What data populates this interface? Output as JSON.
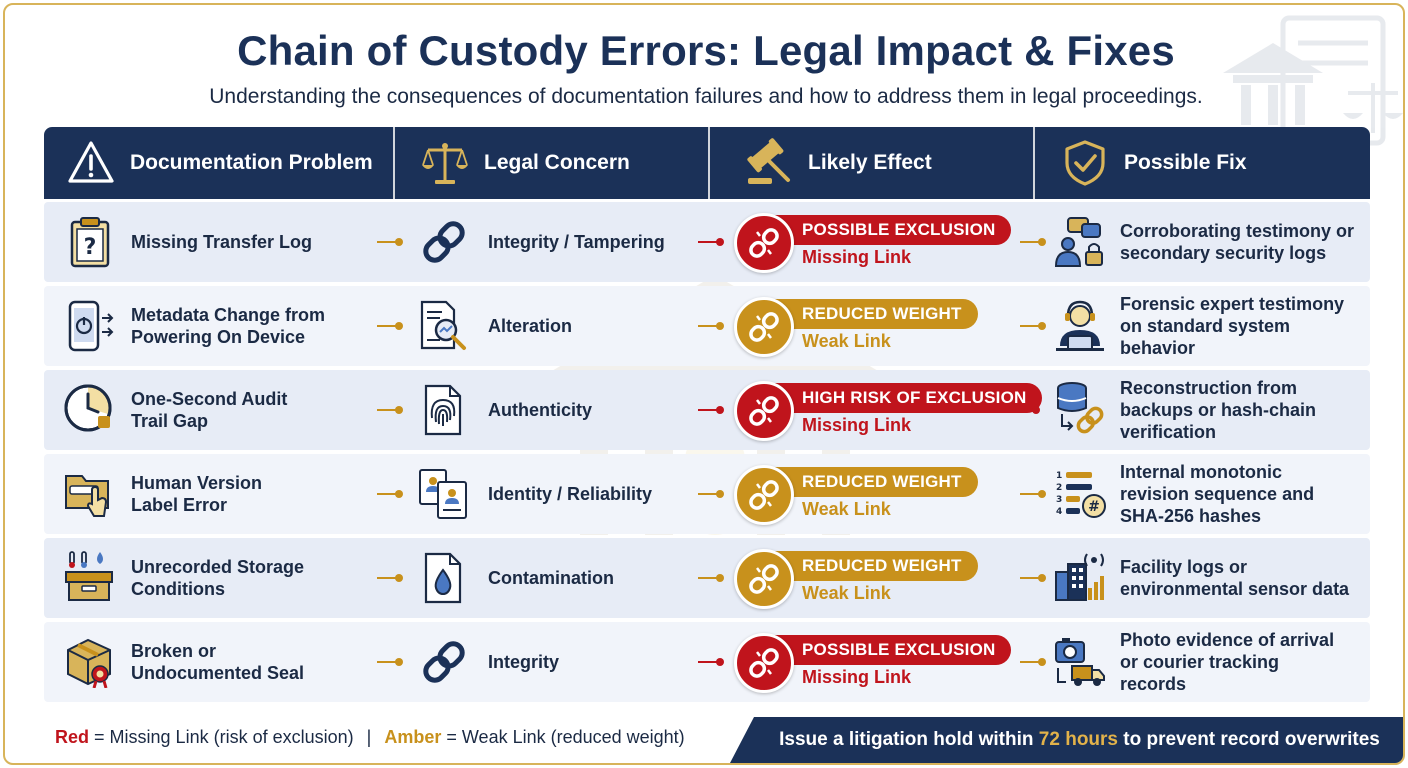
{
  "title": "Chain of Custody Errors: Legal Impact & Fixes",
  "subtitle": "Understanding the consequences of documentation failures and how to address them in legal proceedings.",
  "colors": {
    "navy": "#1b3158",
    "red": "#c0141c",
    "amber": "#c8911c",
    "row": "#e7ecf6",
    "border": "#d8b45a"
  },
  "header": {
    "columns": [
      {
        "label": "Documentation Problem",
        "icon": "warning-triangle-icon"
      },
      {
        "label": "Legal Concern",
        "icon": "scales-of-justice-icon"
      },
      {
        "label": "Likely Effect",
        "icon": "gavel-icon"
      },
      {
        "label": "Possible Fix",
        "icon": "shield-check-icon"
      }
    ]
  },
  "rows": [
    {
      "problem": [
        "Missing Transfer Log"
      ],
      "problem_icon": "clipboard-question-icon",
      "concern": "Integrity / Tampering",
      "concern_icon": "chain-link-icon",
      "effect": {
        "severity": "red",
        "label": "POSSIBLE EXCLUSION",
        "sub": "Missing Link"
      },
      "fix": [
        "Corroborating testimony or",
        "secondary security logs"
      ],
      "fix_icon": "people-chat-lock-icon"
    },
    {
      "problem": [
        "Metadata Change from",
        "Powering On Device"
      ],
      "problem_icon": "phone-power-icon",
      "concern": "Alteration",
      "concern_icon": "document-magnifier-icon",
      "effect": {
        "severity": "amber",
        "label": "REDUCED WEIGHT",
        "sub": "Weak Link"
      },
      "fix": [
        "Forensic expert testimony",
        "on standard system",
        "behavior"
      ],
      "fix_icon": "expert-headset-icon"
    },
    {
      "problem": [
        "One-Second Audit",
        "Trail Gap"
      ],
      "problem_icon": "clock-gap-icon",
      "concern": "Authenticity",
      "concern_icon": "fingerprint-document-icon",
      "effect": {
        "severity": "red",
        "label": "HIGH RISK OF EXCLUSION",
        "sub": "Missing Link"
      },
      "fix": [
        "Reconstruction from",
        "backups or hash-chain",
        "verification"
      ],
      "fix_icon": "database-chain-icon"
    },
    {
      "problem": [
        "Human Version",
        "Label Error"
      ],
      "problem_icon": "folder-hand-icon",
      "concern": "Identity / Reliability",
      "concern_icon": "id-documents-icon",
      "effect": {
        "severity": "amber",
        "label": "REDUCED WEIGHT",
        "sub": "Weak Link"
      },
      "fix": [
        "Internal monotonic",
        "revision sequence and",
        "SHA-256 hashes"
      ],
      "fix_icon": "numbered-list-hash-icon"
    },
    {
      "problem": [
        "Unrecorded Storage",
        "Conditions"
      ],
      "problem_icon": "storage-box-thermometer-icon",
      "concern": "Contamination",
      "concern_icon": "droplet-document-icon",
      "effect": {
        "severity": "amber",
        "label": "REDUCED WEIGHT",
        "sub": "Weak Link"
      },
      "fix": [
        "Facility logs or",
        "environmental sensor data"
      ],
      "fix_icon": "building-sensor-icon"
    },
    {
      "problem": [
        "Broken or",
        "Undocumented Seal"
      ],
      "problem_icon": "sealed-package-icon",
      "concern": "Integrity",
      "concern_icon": "chain-link-icon",
      "effect": {
        "severity": "red",
        "label": "POSSIBLE EXCLUSION",
        "sub": "Missing Link"
      },
      "fix": [
        "Photo evidence of arrival",
        "or courier tracking",
        "records"
      ],
      "fix_icon": "camera-truck-icon"
    }
  ],
  "legend": {
    "red_word": "Red",
    "red_text": "= Missing Link (risk of exclusion)",
    "separator": "|",
    "amber_word": "Amber",
    "amber_text": "= Weak Link (reduced weight)"
  },
  "footer": {
    "before": "Issue a litigation hold within ",
    "highlight": "72 hours",
    "after": " to prevent record overwrites"
  }
}
